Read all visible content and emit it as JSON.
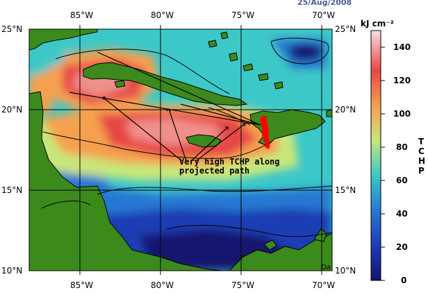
{
  "date": "25/Aug/2008",
  "axes": {
    "top_lon": [
      "85°W",
      "80°W",
      "75°W",
      "70°W"
    ],
    "bottom_lon": [
      "85°W",
      "80°W",
      "75°W",
      "70°W"
    ],
    "left_lat": [
      "25°N",
      "20°N",
      "15°N",
      "10°N"
    ],
    "right_lat": [
      "25°N",
      "20°N",
      "15°N",
      "10°N"
    ]
  },
  "colorbar": {
    "unit": "kJ cm⁻²",
    "ticks": [
      "140",
      "120",
      "100",
      "80",
      "60",
      "40",
      "20",
      "0"
    ],
    "letters": [
      "T",
      "C",
      "H",
      "P"
    ],
    "colors": {
      "c0": "#14146e",
      "c20": "#1e3cb4",
      "c40": "#2878d2",
      "c60": "#3cc8c8",
      "c80": "#c8e67a",
      "c100": "#f5a050",
      "c120": "#e64646",
      "c140": "#f8c8c8"
    }
  },
  "annotation": {
    "line1": "Very high TCHP along",
    "line2": "projected path"
  },
  "credit": "Da",
  "colors": {
    "land": "#3c8a1c",
    "track": "#ff0000"
  }
}
